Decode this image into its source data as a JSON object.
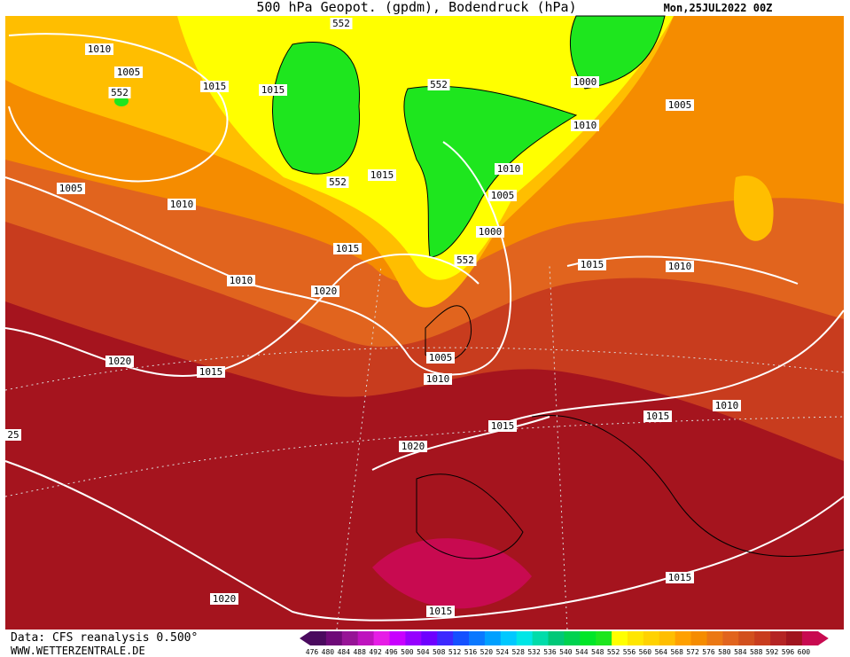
{
  "header": {
    "title": "500 hPa Geopot. (gpdm), Bodendruck (hPa)",
    "date": "Mon,25JUL2022 00Z"
  },
  "footer": {
    "source": "Data: CFS reanalysis 0.500°",
    "site": "WWW.WETTERZENTRALE.DE"
  },
  "isobar_labels": [
    "1010",
    "1005",
    "552",
    "1015",
    "1015",
    "552",
    "552",
    "1000",
    "1010",
    "1005",
    "1010",
    "1015",
    "552",
    "1005",
    "1010",
    "1005",
    "1000",
    "552",
    "1015",
    "1015",
    "1010",
    "1010",
    "1020",
    "1020",
    "1015",
    "1005",
    "1010",
    "25",
    "1015",
    "1015",
    "1010",
    "1020",
    "1015",
    "1020",
    "1015"
  ],
  "colorbar": [
    {
      "value": 476,
      "color": "#4a0a5e"
    },
    {
      "value": 480,
      "color": "#6e0a78"
    },
    {
      "value": 484,
      "color": "#961496"
    },
    {
      "value": 488,
      "color": "#be14be"
    },
    {
      "value": 492,
      "color": "#e61ee6"
    },
    {
      "value": 496,
      "color": "#c800ff"
    },
    {
      "value": 500,
      "color": "#9600ff"
    },
    {
      "value": 504,
      "color": "#6e00ff"
    },
    {
      "value": 508,
      "color": "#3c28ff"
    },
    {
      "value": 512,
      "color": "#1450ff"
    },
    {
      "value": 516,
      "color": "#0a78ff"
    },
    {
      "value": 520,
      "color": "#00a0ff"
    },
    {
      "value": 524,
      "color": "#00c8ff"
    },
    {
      "value": 528,
      "color": "#00e6e6"
    },
    {
      "value": 532,
      "color": "#00dcaa"
    },
    {
      "value": 536,
      "color": "#00c878"
    },
    {
      "value": 540,
      "color": "#00d250"
    },
    {
      "value": 544,
      "color": "#00e628"
    },
    {
      "value": 548,
      "color": "#1ee61e"
    },
    {
      "value": 552,
      "color": "#ffff00"
    },
    {
      "value": 556,
      "color": "#ffe600"
    },
    {
      "value": 560,
      "color": "#ffd200"
    },
    {
      "value": 564,
      "color": "#ffbe00"
    },
    {
      "value": 568,
      "color": "#ffa000"
    },
    {
      "value": 572,
      "color": "#f58c00"
    },
    {
      "value": 576,
      "color": "#eb7814"
    },
    {
      "value": 580,
      "color": "#e1641e"
    },
    {
      "value": 584,
      "color": "#d2501e"
    },
    {
      "value": 588,
      "color": "#c83c1e"
    },
    {
      "value": 592,
      "color": "#b42323"
    },
    {
      "value": 596,
      "color": "#a0141e"
    },
    {
      "value": 600,
      "color": "#c80a50"
    }
  ]
}
